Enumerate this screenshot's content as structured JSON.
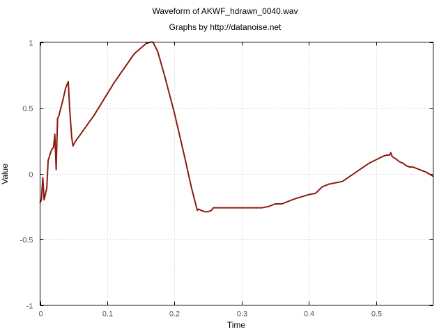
{
  "chart_data": {
    "type": "line",
    "title": "Waveform of AKWF_hdrawn_0040.wav",
    "subtitle": "Graphs by http://datanoise.net",
    "xlabel": "Time",
    "ylabel": "Value",
    "xlim": [
      0,
      0.585
    ],
    "ylim": [
      -1,
      1
    ],
    "xticks": [
      0,
      0.1,
      0.2,
      0.3,
      0.4,
      0.5
    ],
    "xtick_labels": [
      "0",
      "0.1",
      "0.2",
      "0.3",
      "0.4",
      "0.5"
    ],
    "yticks": [
      -1,
      -0.5,
      0,
      0.5,
      1
    ],
    "ytick_labels": [
      "-1",
      "-0.5",
      "0",
      "0.5",
      "1"
    ],
    "grid": true,
    "line_color": "#8b1a10",
    "series": [
      {
        "x": [
          0,
          0.002,
          0.004,
          0.006,
          0.01,
          0.012,
          0.017,
          0.02,
          0.022,
          0.024,
          0.026,
          0.028,
          0.034,
          0.038,
          0.042,
          0.044,
          0.047,
          0.049,
          0.052,
          0.08,
          0.11,
          0.14,
          0.158,
          0.165,
          0.168,
          0.175,
          0.185,
          0.2,
          0.215,
          0.225,
          0.234,
          0.236,
          0.24,
          0.245,
          0.25,
          0.255,
          0.258,
          0.27,
          0.3,
          0.33,
          0.34,
          0.35,
          0.36,
          0.37,
          0.38,
          0.4,
          0.41,
          0.42,
          0.43,
          0.44,
          0.45,
          0.47,
          0.49,
          0.51,
          0.515,
          0.52,
          0.522,
          0.524,
          0.527,
          0.53,
          0.535,
          0.54,
          0.545,
          0.55,
          0.555,
          0.56,
          0.565,
          0.57,
          0.575,
          0.585
        ],
        "y": [
          -0.22,
          -0.2,
          -0.03,
          -0.2,
          -0.11,
          0.1,
          0.18,
          0.2,
          0.3,
          0.03,
          0.42,
          0.44,
          0.56,
          0.65,
          0.7,
          0.5,
          0.28,
          0.21,
          0.24,
          0.44,
          0.69,
          0.91,
          0.99,
          1.0,
          1.0,
          0.93,
          0.75,
          0.46,
          0.13,
          -0.1,
          -0.28,
          -0.27,
          -0.28,
          -0.29,
          -0.29,
          -0.28,
          -0.26,
          -0.26,
          -0.26,
          -0.26,
          -0.25,
          -0.23,
          -0.23,
          -0.21,
          -0.19,
          -0.16,
          -0.15,
          -0.1,
          -0.08,
          -0.07,
          -0.06,
          0.01,
          0.08,
          0.13,
          0.14,
          0.14,
          0.16,
          0.13,
          0.12,
          0.11,
          0.09,
          0.08,
          0.06,
          0.05,
          0.05,
          0.04,
          0.03,
          0.02,
          0.01,
          -0.02
        ]
      }
    ]
  }
}
